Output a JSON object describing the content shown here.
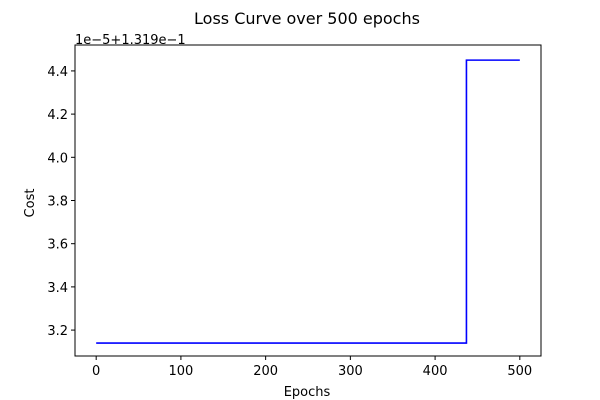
{
  "chart_data": {
    "type": "line",
    "title": "Loss Curve over 500 epochs",
    "xlabel": "Epochs",
    "ylabel": "Cost",
    "y_offset_label": "1e−5+1.319e−1",
    "xlim": [
      -25,
      525
    ],
    "ylim": [
      3.08,
      4.52
    ],
    "x_ticks": [
      0,
      100,
      200,
      300,
      400,
      500
    ],
    "y_ticks": [
      3.2,
      3.4,
      3.6,
      3.8,
      4.0,
      4.2,
      4.4
    ],
    "x_tick_labels": [
      "0",
      "100",
      "200",
      "300",
      "400",
      "500"
    ],
    "y_tick_labels": [
      "3.2",
      "3.4",
      "3.6",
      "3.8",
      "4.0",
      "4.2",
      "4.4"
    ],
    "grid": false,
    "series": [
      {
        "color": "#0000ff",
        "x": [
          0,
          437,
          437,
          500
        ],
        "y": [
          3.14,
          3.14,
          4.45,
          4.45
        ]
      }
    ]
  }
}
